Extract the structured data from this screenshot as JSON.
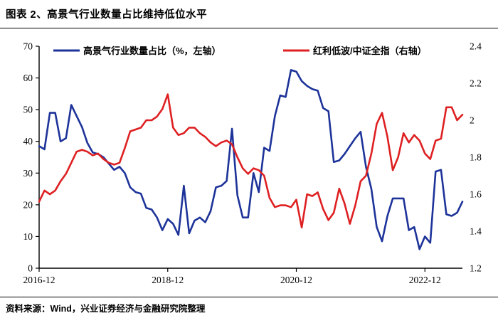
{
  "header": {
    "title": "图表 2、高景气行业数量占比维持低位水平"
  },
  "footer": {
    "source": "资料来源：Wind，兴业证券经济与金融研究院整理"
  },
  "colors": {
    "blue": "#1d3399",
    "red": "#de2022",
    "axis": "#000000"
  },
  "chart_data": {
    "type": "line",
    "title": "图表 2、高景气行业数量占比维持低位水平",
    "x_start": "2016-12",
    "x_end": "2023-07",
    "x_tick_labels": [
      "2016-12",
      "2018-12",
      "2020-12",
      "2022-12"
    ],
    "x_tick_month_index": [
      0,
      24,
      48,
      72
    ],
    "left_axis": {
      "min": 0,
      "max": 70,
      "ticks": [
        "0",
        "10",
        "20",
        "30",
        "40",
        "50",
        "60",
        "70"
      ]
    },
    "right_axis": {
      "min": 1.2,
      "max": 2.4,
      "ticks": [
        "1.2",
        "1.4",
        "1.6",
        "1.8",
        "2",
        "2.2",
        "2.4"
      ]
    },
    "grid": false,
    "legend_position": "top-inside",
    "series": [
      {
        "name": "高景气行业数量占比（%，左轴）",
        "axis": "left",
        "color": "#1d3399",
        "values": [
          38.5,
          37.5,
          49,
          49,
          40,
          41,
          51.5,
          48,
          44.5,
          39.5,
          36.5,
          36,
          35,
          33,
          31,
          32,
          30,
          25.5,
          24,
          23.5,
          19,
          18.5,
          16,
          12,
          15.5,
          14,
          10.5,
          26,
          11,
          15,
          16,
          14.5,
          18,
          25.5,
          26,
          27.5,
          44,
          23,
          16,
          16,
          30,
          24,
          38,
          37,
          48,
          54.5,
          54,
          62.5,
          62,
          59,
          57.5,
          56.5,
          56,
          50.5,
          49.5,
          33.5,
          34,
          36,
          38.5,
          41,
          43,
          32,
          25,
          13,
          8.5,
          16.5,
          22,
          22,
          22,
          12,
          13,
          6,
          10,
          8,
          30.5,
          31,
          17,
          16.5,
          17.5,
          21
        ]
      },
      {
        "name": "红利低波/中证全指（右轴）",
        "axis": "right",
        "color": "#de2022",
        "values": [
          1.56,
          1.62,
          1.6,
          1.62,
          1.67,
          1.71,
          1.77,
          1.83,
          1.84,
          1.83,
          1.81,
          1.82,
          1.79,
          1.77,
          1.76,
          1.77,
          1.85,
          1.94,
          1.95,
          1.96,
          2.0,
          2.0,
          2.02,
          2.06,
          2.14,
          1.96,
          1.92,
          1.93,
          1.96,
          1.96,
          1.93,
          1.91,
          1.88,
          1.86,
          1.88,
          1.89,
          1.87,
          1.8,
          1.74,
          1.71,
          1.74,
          1.73,
          1.7,
          1.58,
          1.53,
          1.54,
          1.54,
          1.53,
          1.57,
          1.42,
          1.6,
          1.59,
          1.61,
          1.52,
          1.46,
          1.5,
          1.63,
          1.55,
          1.44,
          1.54,
          1.67,
          1.7,
          1.82,
          1.98,
          2.04,
          1.91,
          1.73,
          1.8,
          1.93,
          1.88,
          1.92,
          1.89,
          1.82,
          1.79,
          1.89,
          1.9,
          2.07,
          2.07,
          2.0,
          2.03
        ]
      }
    ]
  }
}
